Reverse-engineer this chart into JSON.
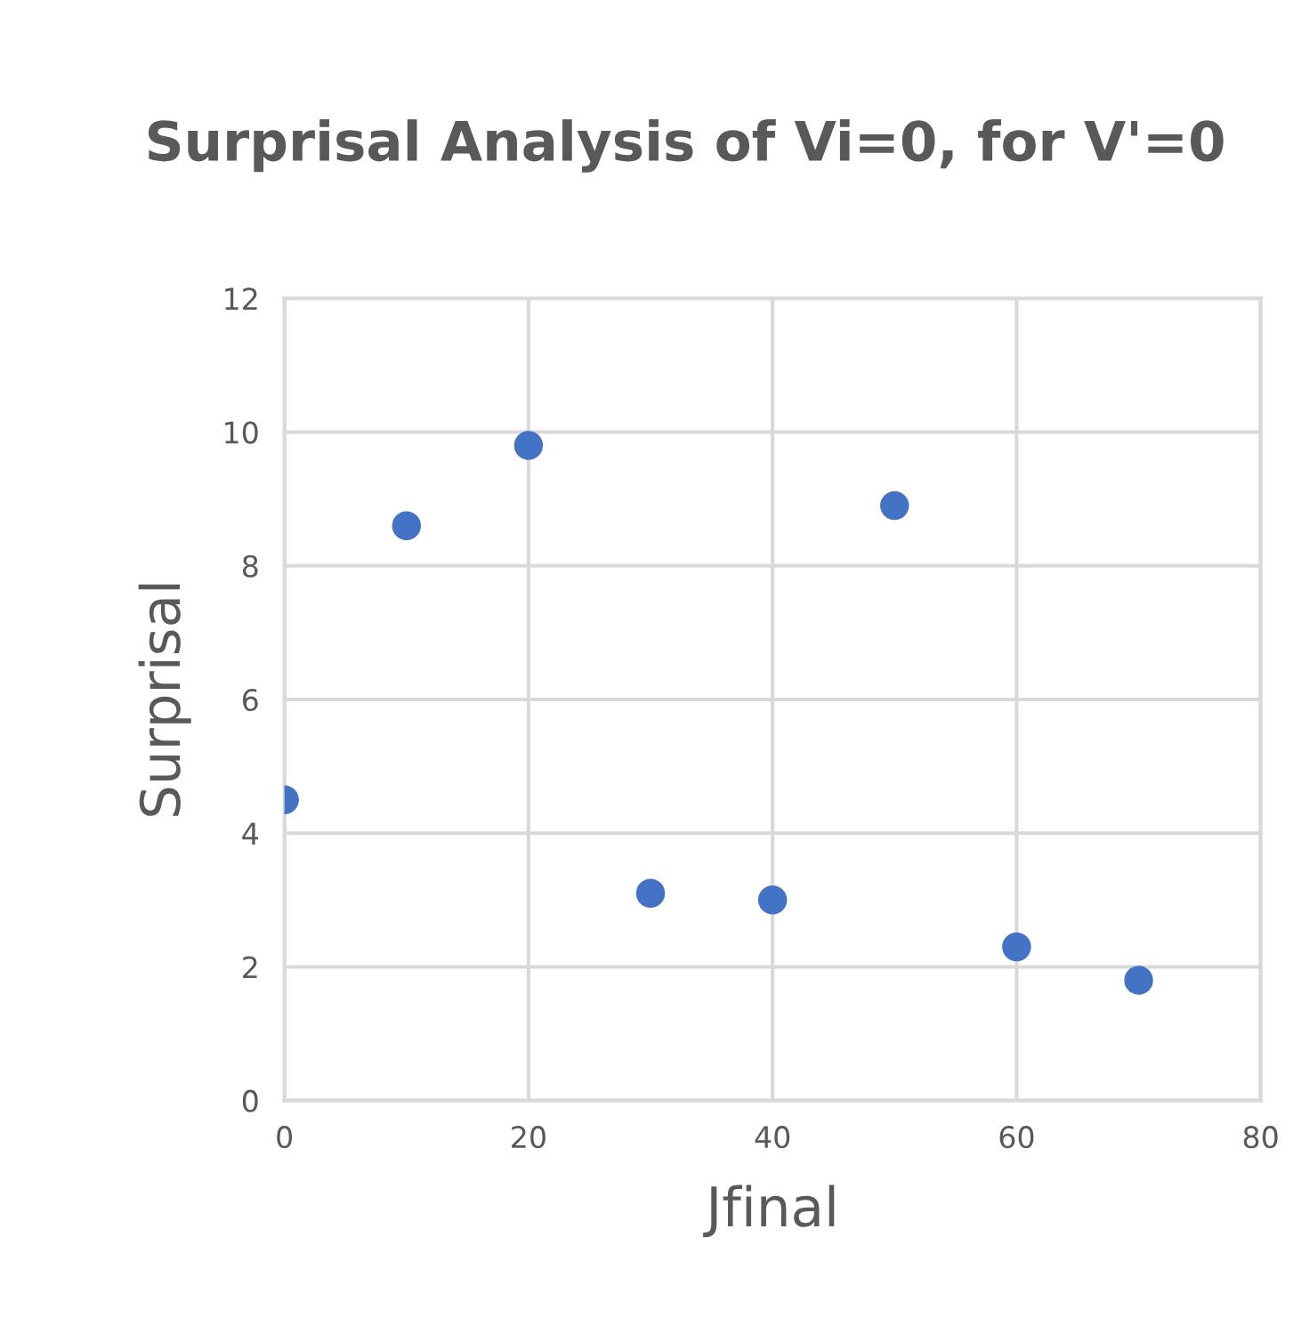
{
  "chart_data": {
    "type": "scatter",
    "title": "Surprisal Analysis of Vi=0, for V'=0",
    "xlabel": "Jfinal",
    "ylabel": "Surprisal",
    "x": [
      0,
      10,
      20,
      30,
      40,
      50,
      60,
      70
    ],
    "series": [
      {
        "color": "#4472c4",
        "values": [
          4.5,
          8.6,
          9.8,
          3.1,
          3.0,
          8.9,
          2.3,
          1.8
        ]
      }
    ],
    "xlim": [
      0,
      80
    ],
    "xticks": [
      0,
      20,
      40,
      60,
      80
    ],
    "ylim": [
      0,
      12
    ],
    "yticks": [
      0,
      2,
      4,
      6,
      8,
      10,
      12
    ],
    "grid": true,
    "marker": "circle",
    "legend": false
  }
}
